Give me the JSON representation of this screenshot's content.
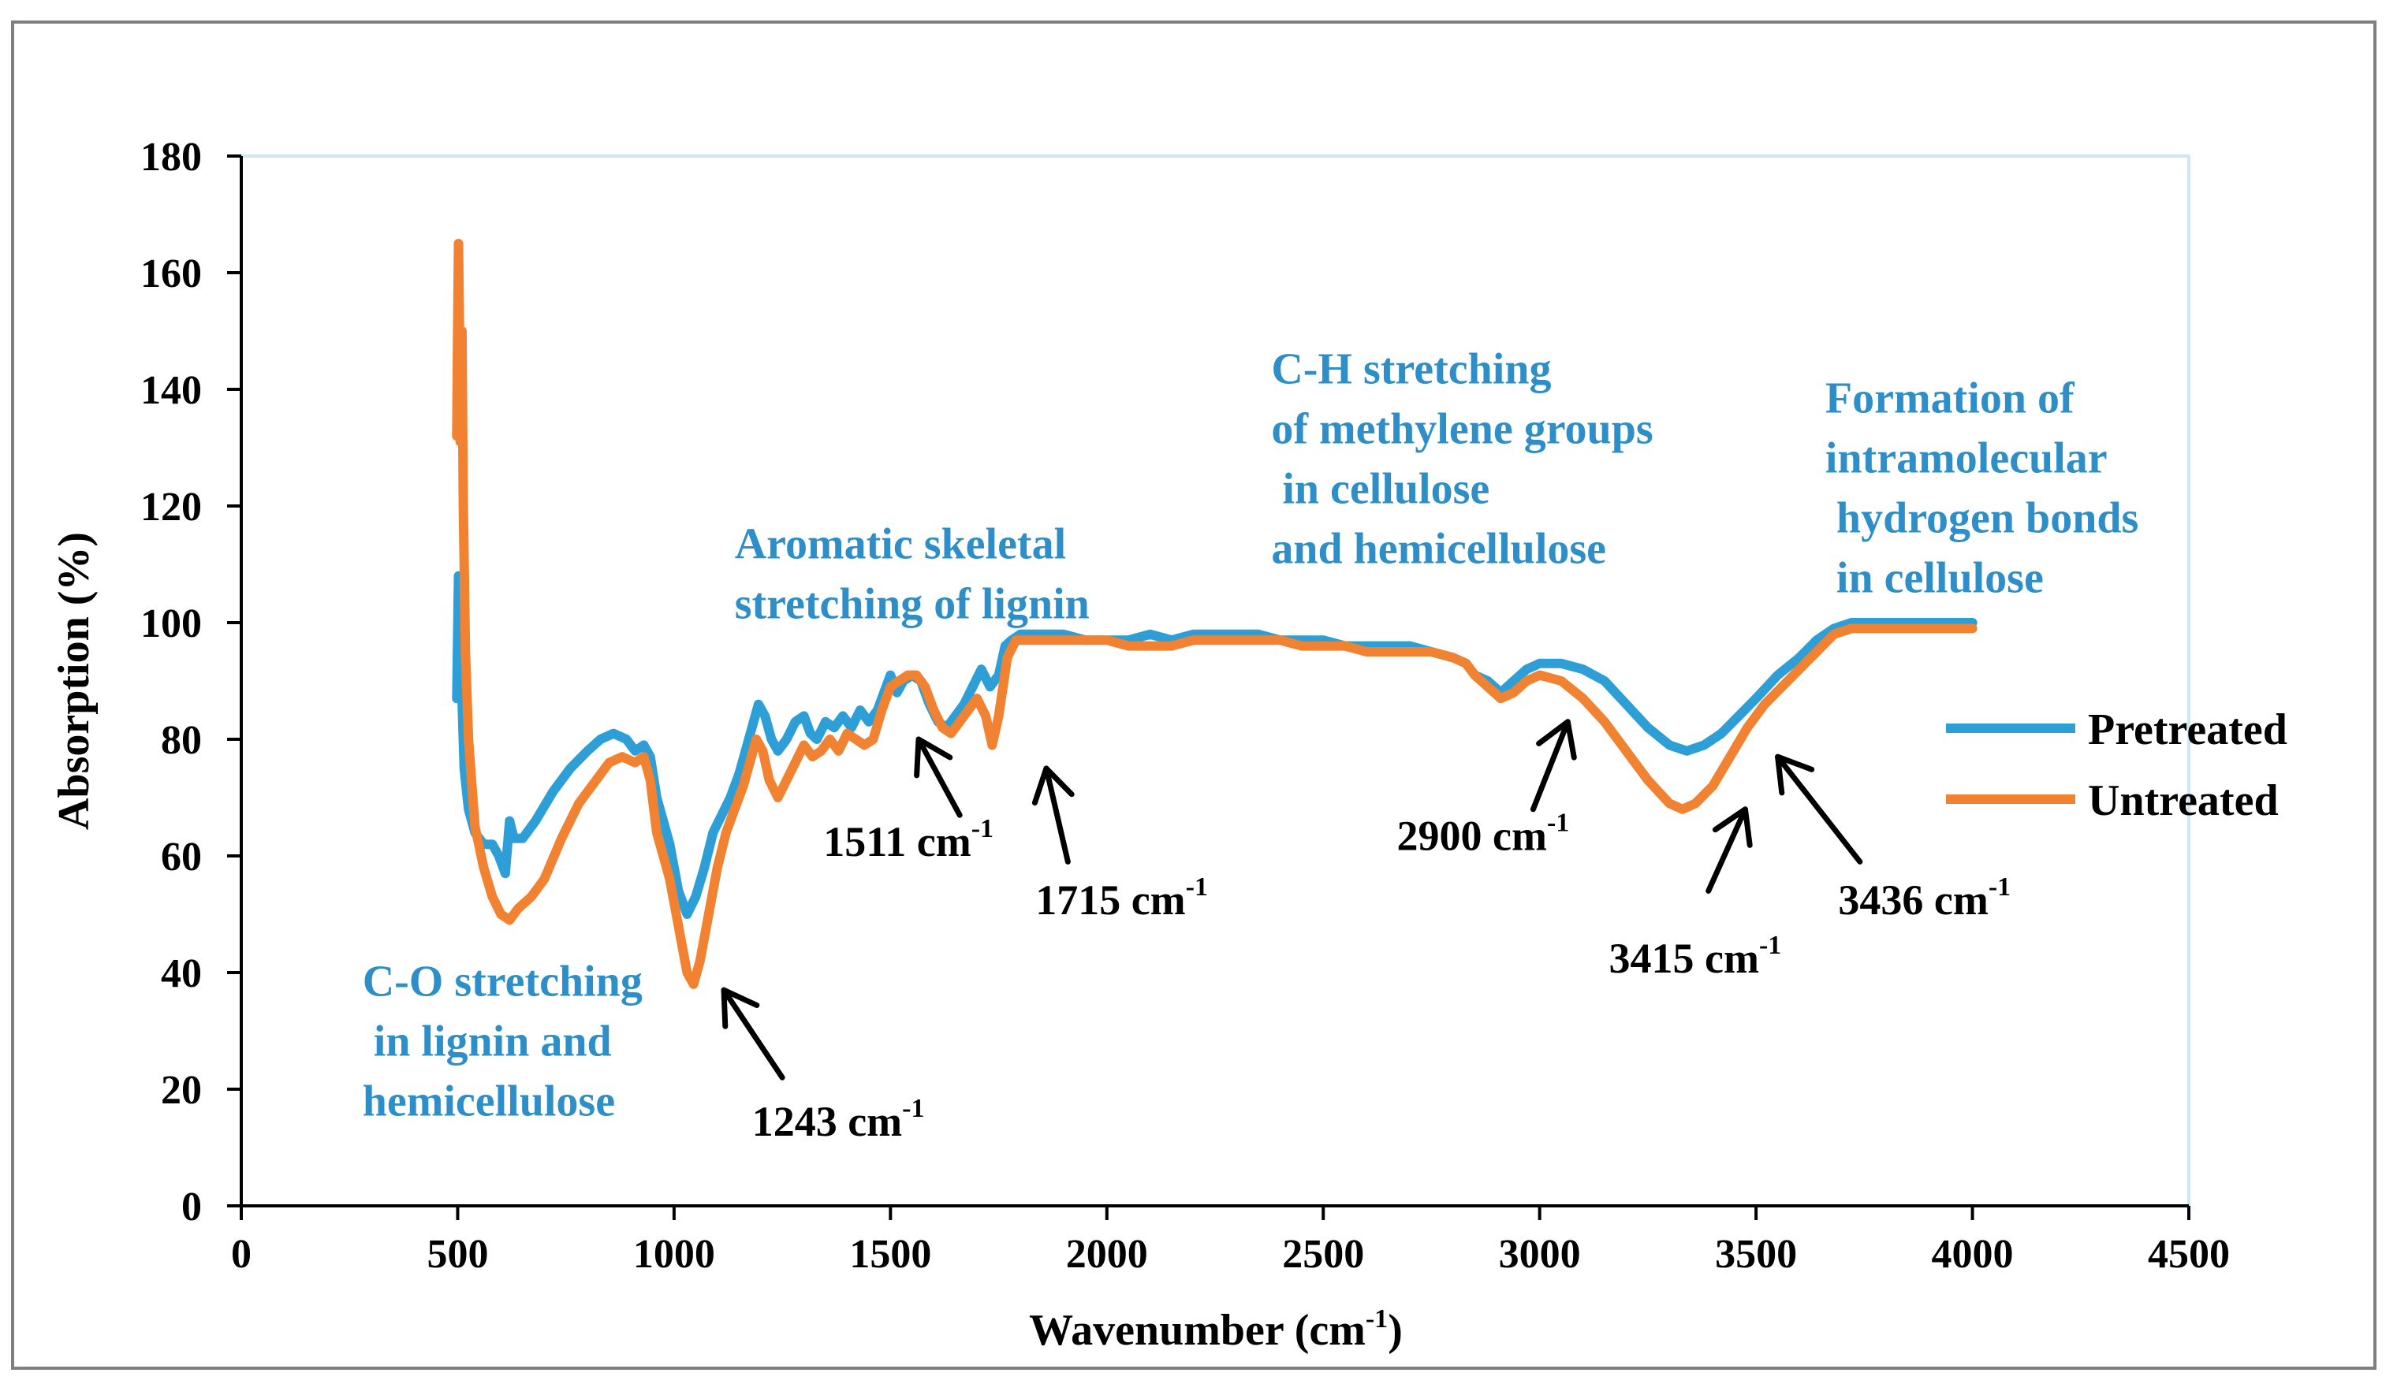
{
  "chart_data": {
    "type": "line",
    "xlabel": "Wavenumber (cm",
    "xlabel_sup": "-1",
    "xlabel_end": ")",
    "ylabel": "Absorption (%)",
    "xlim": [
      0,
      4500
    ],
    "ylim": [
      0,
      180
    ],
    "x_ticks": [
      "0",
      "500",
      "1000",
      "1500",
      "2000",
      "2500",
      "3000",
      "3500",
      "4000",
      "4500"
    ],
    "y_ticks": [
      "0",
      "20",
      "40",
      "60",
      "80",
      "100",
      "120",
      "140",
      "160",
      "180"
    ],
    "grid": false,
    "legend_position": "right",
    "series": [
      {
        "name": "Pretreated",
        "color": "#2e9fd6",
        "points": [
          [
            498,
            87
          ],
          [
            502,
            108
          ],
          [
            508,
            92
          ],
          [
            515,
            75
          ],
          [
            525,
            68
          ],
          [
            540,
            64
          ],
          [
            560,
            62
          ],
          [
            580,
            62
          ],
          [
            595,
            60
          ],
          [
            610,
            57
          ],
          [
            620,
            66
          ],
          [
            630,
            63
          ],
          [
            650,
            63
          ],
          [
            680,
            66
          ],
          [
            720,
            71
          ],
          [
            760,
            75
          ],
          [
            800,
            78
          ],
          [
            830,
            80
          ],
          [
            860,
            81
          ],
          [
            890,
            80
          ],
          [
            910,
            78
          ],
          [
            930,
            79
          ],
          [
            945,
            77
          ],
          [
            960,
            70
          ],
          [
            975,
            66
          ],
          [
            990,
            62
          ],
          [
            1010,
            54
          ],
          [
            1030,
            50
          ],
          [
            1050,
            53
          ],
          [
            1070,
            58
          ],
          [
            1090,
            64
          ],
          [
            1110,
            67
          ],
          [
            1130,
            70
          ],
          [
            1150,
            74
          ],
          [
            1165,
            78
          ],
          [
            1180,
            82
          ],
          [
            1195,
            86
          ],
          [
            1210,
            84
          ],
          [
            1225,
            80
          ],
          [
            1240,
            78
          ],
          [
            1260,
            80
          ],
          [
            1280,
            83
          ],
          [
            1300,
            84
          ],
          [
            1315,
            81
          ],
          [
            1330,
            80
          ],
          [
            1350,
            83
          ],
          [
            1370,
            82
          ],
          [
            1390,
            84
          ],
          [
            1410,
            82
          ],
          [
            1430,
            85
          ],
          [
            1450,
            83
          ],
          [
            1470,
            85
          ],
          [
            1490,
            89
          ],
          [
            1500,
            91
          ],
          [
            1515,
            88
          ],
          [
            1530,
            90
          ],
          [
            1550,
            91
          ],
          [
            1570,
            90
          ],
          [
            1590,
            86
          ],
          [
            1610,
            83
          ],
          [
            1630,
            82
          ],
          [
            1650,
            84
          ],
          [
            1670,
            86
          ],
          [
            1690,
            89
          ],
          [
            1710,
            92
          ],
          [
            1730,
            89
          ],
          [
            1750,
            91
          ],
          [
            1765,
            96
          ],
          [
            1780,
            97
          ],
          [
            1800,
            98
          ],
          [
            1850,
            98
          ],
          [
            1900,
            98
          ],
          [
            1950,
            97
          ],
          [
            2000,
            97
          ],
          [
            2050,
            97
          ],
          [
            2100,
            98
          ],
          [
            2150,
            97
          ],
          [
            2200,
            98
          ],
          [
            2250,
            98
          ],
          [
            2300,
            98
          ],
          [
            2350,
            98
          ],
          [
            2400,
            97
          ],
          [
            2450,
            97
          ],
          [
            2500,
            97
          ],
          [
            2550,
            96
          ],
          [
            2600,
            96
          ],
          [
            2650,
            96
          ],
          [
            2700,
            96
          ],
          [
            2750,
            95
          ],
          [
            2800,
            94
          ],
          [
            2830,
            93
          ],
          [
            2850,
            91
          ],
          [
            2880,
            90
          ],
          [
            2910,
            88
          ],
          [
            2940,
            90
          ],
          [
            2970,
            92
          ],
          [
            3000,
            93
          ],
          [
            3050,
            93
          ],
          [
            3100,
            92
          ],
          [
            3150,
            90
          ],
          [
            3200,
            86
          ],
          [
            3250,
            82
          ],
          [
            3300,
            79
          ],
          [
            3340,
            78
          ],
          [
            3380,
            79
          ],
          [
            3420,
            81
          ],
          [
            3460,
            84
          ],
          [
            3500,
            87
          ],
          [
            3550,
            91
          ],
          [
            3600,
            94
          ],
          [
            3640,
            97
          ],
          [
            3680,
            99
          ],
          [
            3720,
            100
          ],
          [
            3800,
            100
          ],
          [
            3900,
            100
          ],
          [
            4000,
            100
          ]
        ]
      },
      {
        "name": "Untreated",
        "color": "#f08232",
        "points": [
          [
            498,
            132
          ],
          [
            500,
            150
          ],
          [
            502,
            165
          ],
          [
            504,
            152
          ],
          [
            506,
            131
          ],
          [
            510,
            150
          ],
          [
            513,
            120
          ],
          [
            518,
            95
          ],
          [
            525,
            80
          ],
          [
            540,
            65
          ],
          [
            560,
            58
          ],
          [
            580,
            53
          ],
          [
            600,
            50
          ],
          [
            620,
            49
          ],
          [
            640,
            51
          ],
          [
            670,
            53
          ],
          [
            700,
            56
          ],
          [
            740,
            63
          ],
          [
            780,
            69
          ],
          [
            820,
            73
          ],
          [
            850,
            76
          ],
          [
            880,
            77
          ],
          [
            910,
            76
          ],
          [
            930,
            77
          ],
          [
            945,
            73
          ],
          [
            960,
            64
          ],
          [
            975,
            60
          ],
          [
            990,
            56
          ],
          [
            1010,
            48
          ],
          [
            1030,
            40
          ],
          [
            1045,
            38
          ],
          [
            1060,
            42
          ],
          [
            1080,
            50
          ],
          [
            1100,
            58
          ],
          [
            1120,
            64
          ],
          [
            1140,
            68
          ],
          [
            1160,
            72
          ],
          [
            1175,
            76
          ],
          [
            1190,
            80
          ],
          [
            1205,
            78
          ],
          [
            1220,
            73
          ],
          [
            1240,
            70
          ],
          [
            1260,
            73
          ],
          [
            1280,
            76
          ],
          [
            1300,
            79
          ],
          [
            1320,
            77
          ],
          [
            1340,
            78
          ],
          [
            1360,
            80
          ],
          [
            1380,
            78
          ],
          [
            1400,
            81
          ],
          [
            1420,
            80
          ],
          [
            1440,
            79
          ],
          [
            1460,
            80
          ],
          [
            1480,
            85
          ],
          [
            1500,
            89
          ],
          [
            1520,
            90
          ],
          [
            1540,
            91
          ],
          [
            1560,
            91
          ],
          [
            1580,
            89
          ],
          [
            1600,
            85
          ],
          [
            1620,
            82
          ],
          [
            1640,
            81
          ],
          [
            1660,
            83
          ],
          [
            1680,
            85
          ],
          [
            1700,
            87
          ],
          [
            1720,
            84
          ],
          [
            1735,
            79
          ],
          [
            1750,
            84
          ],
          [
            1770,
            94
          ],
          [
            1790,
            97
          ],
          [
            1820,
            97
          ],
          [
            1900,
            97
          ],
          [
            1950,
            97
          ],
          [
            2000,
            97
          ],
          [
            2050,
            96
          ],
          [
            2100,
            96
          ],
          [
            2150,
            96
          ],
          [
            2200,
            97
          ],
          [
            2250,
            97
          ],
          [
            2300,
            97
          ],
          [
            2350,
            97
          ],
          [
            2400,
            97
          ],
          [
            2450,
            96
          ],
          [
            2500,
            96
          ],
          [
            2550,
            96
          ],
          [
            2600,
            95
          ],
          [
            2650,
            95
          ],
          [
            2700,
            95
          ],
          [
            2750,
            95
          ],
          [
            2800,
            94
          ],
          [
            2830,
            93
          ],
          [
            2850,
            91
          ],
          [
            2880,
            89
          ],
          [
            2910,
            87
          ],
          [
            2940,
            88
          ],
          [
            2970,
            90
          ],
          [
            3000,
            91
          ],
          [
            3050,
            90
          ],
          [
            3100,
            87
          ],
          [
            3150,
            83
          ],
          [
            3200,
            78
          ],
          [
            3250,
            73
          ],
          [
            3300,
            69
          ],
          [
            3330,
            68
          ],
          [
            3360,
            69
          ],
          [
            3400,
            72
          ],
          [
            3440,
            77
          ],
          [
            3480,
            82
          ],
          [
            3520,
            86
          ],
          [
            3560,
            89
          ],
          [
            3600,
            92
          ],
          [
            3640,
            95
          ],
          [
            3680,
            98
          ],
          [
            3720,
            99
          ],
          [
            3800,
            99
          ],
          [
            3900,
            99
          ],
          [
            4000,
            99
          ]
        ]
      }
    ],
    "annotations": [
      {
        "lines": [
          "C-O stretching",
          " in lignin and",
          "hemicellulose"
        ],
        "wn": 280,
        "y": 36
      },
      {
        "lines": [
          "Aromatic skeletal",
          "stretching of lignin"
        ],
        "wn": 1140,
        "y": 111
      },
      {
        "lines": [
          "C-H stretching",
          "of methylene groups",
          " in cellulose",
          "and hemicellulose"
        ],
        "wn": 2380,
        "y": 141
      },
      {
        "lines": [
          "Formation of",
          "intramolecular",
          " hydrogen bonds",
          " in cellulose"
        ],
        "wn": 3660,
        "y": 136
      }
    ],
    "peak_labels": [
      {
        "text": "1243 cm",
        "sup": "-1",
        "wn": 1180,
        "y": 12,
        "arrow": [
          1250,
          22,
          1115,
          37
        ]
      },
      {
        "text": "1511 cm",
        "sup": "-1",
        "wn": 1345,
        "y": 60,
        "arrow": [
          1660,
          67,
          1565,
          80
        ]
      },
      {
        "text": "1715 cm",
        "sup": "-1",
        "wn": 1835,
        "y": 50,
        "arrow": [
          1910,
          59,
          1860,
          75
        ]
      },
      {
        "text": "2900 cm",
        "sup": "-1",
        "wn": 2670,
        "y": 61,
        "arrow": [
          2985,
          68,
          3065,
          83
        ]
      },
      {
        "text": "3415 cm",
        "sup": "-1",
        "wn": 3160,
        "y": 40,
        "arrow": [
          3390,
          54,
          3475,
          68
        ]
      },
      {
        "text": "3436 cm",
        "sup": "-1",
        "wn": 3690,
        "y": 50,
        "arrow": [
          3740,
          59,
          3550,
          77
        ]
      }
    ]
  }
}
